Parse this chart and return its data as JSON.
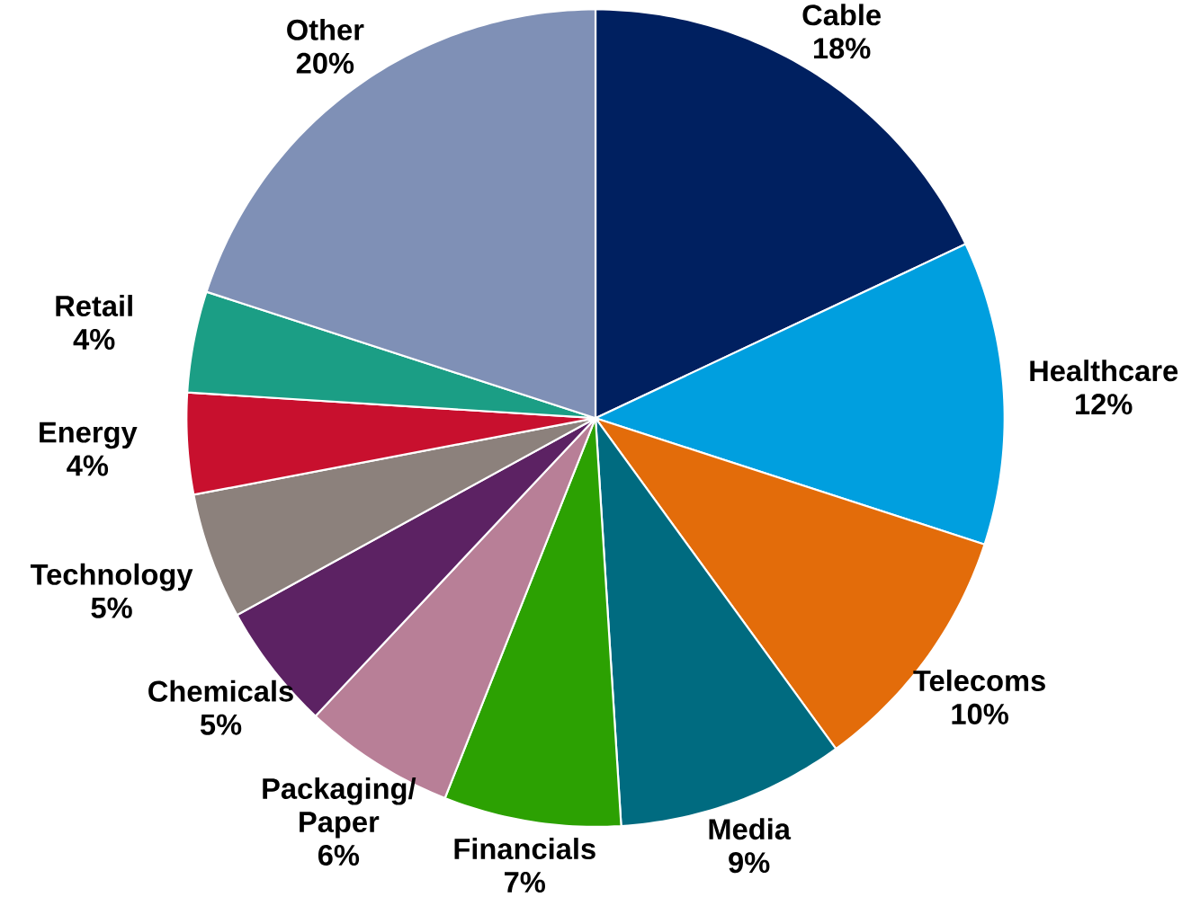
{
  "chart_data": {
    "type": "pie",
    "categories": [
      "Cable",
      "Healthcare",
      "Telecoms",
      "Media",
      "Financials",
      "Packaging/ Paper",
      "Chemicals",
      "Technology",
      "Energy",
      "Retail",
      "Other"
    ],
    "values": [
      18,
      12,
      10,
      9,
      7,
      6,
      5,
      5,
      4,
      4,
      20
    ],
    "value_labels": [
      "18%",
      "12%",
      "10%",
      "9%",
      "7%",
      "6%",
      "5%",
      "5%",
      "4%",
      "4%",
      "20%"
    ],
    "colors": [
      "#002060",
      "#009fdf",
      "#e36c0a",
      "#006b80",
      "#2ca102",
      "#b87f97",
      "#5c2263",
      "#8c817c",
      "#c8102e",
      "#1b9e85",
      "#7f90b6"
    ]
  }
}
